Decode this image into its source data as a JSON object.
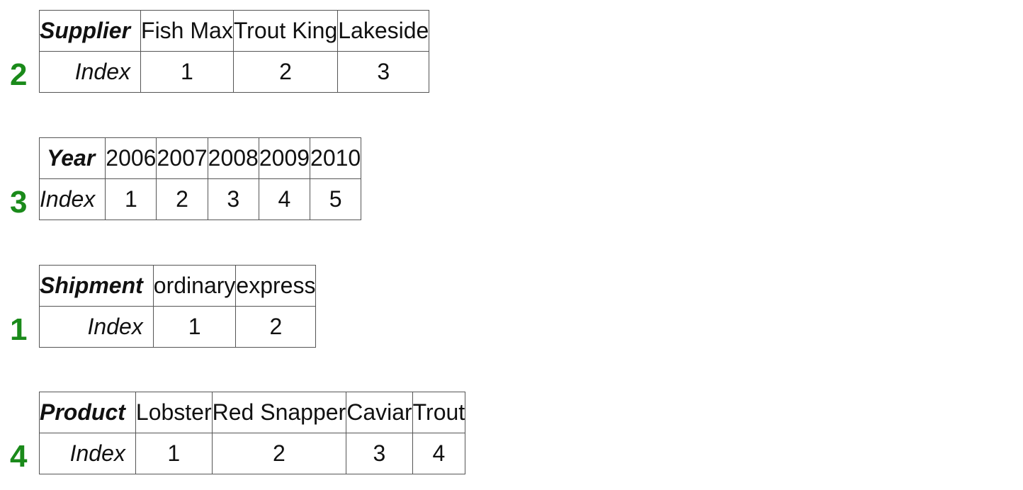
{
  "tables": [
    {
      "number": "2",
      "header": "Supplier",
      "values": [
        "Fish Max",
        "Trout King",
        "Lakeside"
      ],
      "index_label": "Index",
      "indices": [
        "1",
        "2",
        "3"
      ]
    },
    {
      "number": "3",
      "header": "Year",
      "values": [
        "2006",
        "2007",
        "2008",
        "2009",
        "2010"
      ],
      "index_label": "Index",
      "indices": [
        "1",
        "2",
        "3",
        "4",
        "5"
      ]
    },
    {
      "number": "1",
      "header": "Shipment",
      "values": [
        "ordinary",
        "express"
      ],
      "index_label": "Index",
      "indices": [
        "1",
        "2"
      ]
    },
    {
      "number": "4",
      "header": "Product",
      "values": [
        "Lobster",
        "Red Snapper",
        "Caviar",
        "Trout"
      ],
      "index_label": "Index",
      "indices": [
        "1",
        "2",
        "3",
        "4"
      ]
    }
  ],
  "colors": {
    "number_green": "#1a8a1a",
    "border": "#555555",
    "text": "#111111"
  }
}
